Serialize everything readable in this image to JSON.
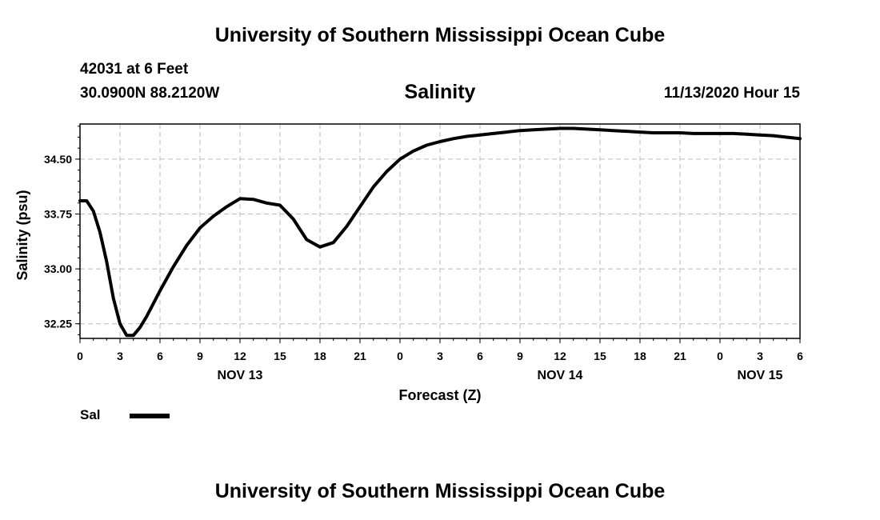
{
  "header": {
    "title": "University of Southern Mississippi Ocean Cube",
    "station": "42031 at 6 Feet",
    "coordinates": "30.0900N 88.2120W",
    "parameter": "Salinity",
    "datetime": "11/13/2020 Hour 15"
  },
  "footer": {
    "title": "University of Southern Mississippi Ocean Cube"
  },
  "legend": {
    "label": "Sal",
    "color": "#000000"
  },
  "chart_data": {
    "type": "line",
    "title": "Salinity",
    "xlabel": "Forecast (Z)",
    "ylabel": "Salinity (psu)",
    "xlim": [
      0,
      54
    ],
    "ylim": [
      32.05,
      34.98
    ],
    "yticks": [
      32.25,
      33.0,
      33.75,
      34.5
    ],
    "ytick_labels": [
      "32.25",
      "33.00",
      "33.75",
      "34.50"
    ],
    "xticks": [
      0,
      3,
      6,
      9,
      12,
      15,
      18,
      21,
      24,
      27,
      30,
      33,
      36,
      39,
      42,
      45,
      48,
      51,
      54
    ],
    "xtick_labels": [
      "0",
      "3",
      "6",
      "9",
      "12",
      "15",
      "18",
      "21",
      "0",
      "3",
      "6",
      "9",
      "12",
      "15",
      "18",
      "21",
      "0",
      "3",
      "6"
    ],
    "date_labels": [
      {
        "x": 12,
        "label": "NOV 13"
      },
      {
        "x": 36,
        "label": "NOV 14"
      },
      {
        "x": 51,
        "label": "NOV 15"
      }
    ],
    "grid": true,
    "series": [
      {
        "name": "Sal",
        "x": [
          0,
          0.5,
          1,
          1.5,
          2,
          2.5,
          3,
          3.5,
          4,
          4.5,
          5,
          6,
          7,
          8,
          9,
          10,
          11,
          12,
          13,
          14,
          15,
          16,
          17,
          18,
          19,
          20,
          21,
          22,
          23,
          24,
          25,
          26,
          27,
          28,
          29,
          30,
          31,
          32,
          33,
          34,
          35,
          36,
          37,
          38,
          39,
          40,
          41,
          42,
          43,
          44,
          45,
          46,
          47,
          48,
          49,
          50,
          51,
          52,
          53,
          54
        ],
        "y": [
          33.93,
          33.93,
          33.79,
          33.5,
          33.1,
          32.6,
          32.25,
          32.09,
          32.09,
          32.2,
          32.35,
          32.7,
          33.03,
          33.32,
          33.56,
          33.72,
          33.85,
          33.96,
          33.95,
          33.9,
          33.87,
          33.68,
          33.4,
          33.3,
          33.36,
          33.58,
          33.85,
          34.12,
          34.33,
          34.5,
          34.61,
          34.69,
          34.74,
          34.78,
          34.81,
          34.83,
          34.85,
          34.87,
          34.89,
          34.9,
          34.91,
          34.92,
          34.92,
          34.91,
          34.9,
          34.89,
          34.88,
          34.87,
          34.86,
          34.86,
          34.86,
          34.85,
          34.85,
          34.85,
          34.85,
          34.84,
          34.83,
          34.82,
          34.8,
          34.78
        ]
      }
    ]
  }
}
